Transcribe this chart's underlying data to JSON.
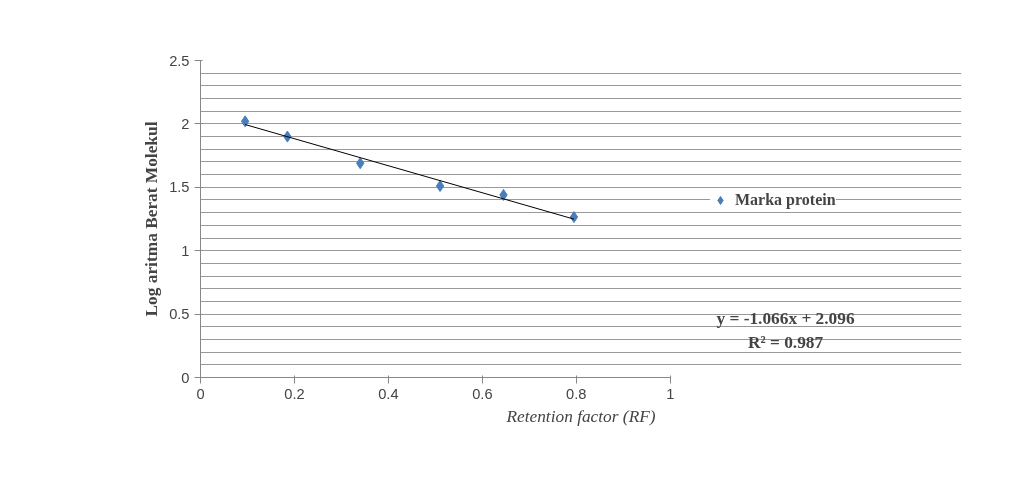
{
  "chart_data": {
    "type": "scatter",
    "xlabel": "Retention factor (RF)",
    "ylabel": "Log aritma Berat Molekul",
    "xlim": [
      0,
      1
    ],
    "xticks": [
      0,
      0.2,
      0.4,
      0.6,
      0.8,
      1
    ],
    "ylim": [
      0,
      2.5
    ],
    "yticks": [
      0,
      {
        "value": 0.1,
        "label": null
      },
      {
        "value": 0.2,
        "label": null
      },
      {
        "value": 0.3,
        "label": null
      },
      {
        "value": 0.4,
        "label": null
      },
      0.5,
      {
        "value": 0.6,
        "label": null
      },
      {
        "value": 0.7,
        "label": null
      },
      {
        "value": 0.8,
        "label": null
      },
      {
        "value": 0.9,
        "label": null
      },
      1,
      {
        "value": 1.1,
        "label": null
      },
      {
        "value": 1.2,
        "label": null
      },
      {
        "value": 1.3,
        "label": null
      },
      {
        "value": 1.4,
        "label": null
      },
      1.5,
      {
        "value": 1.6,
        "label": null
      },
      {
        "value": 1.7,
        "label": null
      },
      {
        "value": 1.8,
        "label": null
      },
      {
        "value": 1.9,
        "label": null
      },
      2,
      {
        "value": 2.1,
        "label": null
      },
      {
        "value": 2.2,
        "label": null
      },
      {
        "value": 2.3,
        "label": null
      },
      {
        "value": 2.4,
        "label": null
      },
      2.5
    ],
    "grid": "y",
    "legend": "right",
    "series": [
      {
        "name": "Marka protein",
        "marker": "diamond",
        "color": "#4a7ebb",
        "x": [
          0.095,
          0.185,
          0.34,
          0.51,
          0.645,
          0.795
        ],
        "values": [
          2.02,
          1.9,
          1.69,
          1.51,
          1.44,
          1.265
        ]
      },
      {
        "type": "line",
        "color": "#000000",
        "x": [
          0.095,
          0.795
        ],
        "values": [
          1.995,
          1.249
        ]
      }
    ],
    "annotations": [
      "y = -1.066x + 2.096",
      "R² = 0.987"
    ]
  }
}
